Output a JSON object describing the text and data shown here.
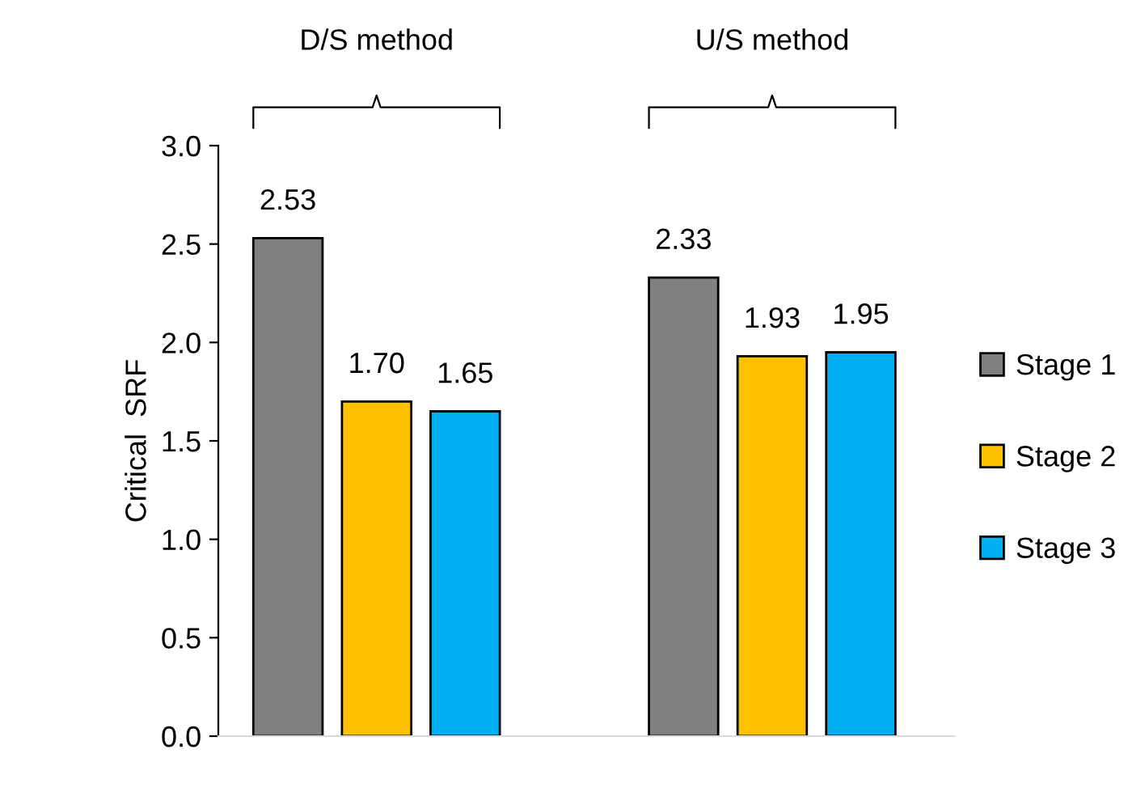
{
  "chart_data": {
    "type": "bar",
    "ylabel": "Critical  SRF",
    "categories": [
      "D/S method",
      "U/S method"
    ],
    "series": [
      {
        "name": "Stage 1",
        "color": "#808080",
        "values": [
          2.53,
          2.33
        ]
      },
      {
        "name": "Stage 2",
        "color": "#ffc000",
        "values": [
          1.7,
          1.93
        ]
      },
      {
        "name": "Stage 3",
        "color": "#00b0f0",
        "values": [
          1.65,
          1.95
        ]
      }
    ],
    "value_labels": [
      [
        "2.53",
        "2.33"
      ],
      [
        "1.70",
        "1.93"
      ],
      [
        "1.65",
        "1.95"
      ]
    ],
    "ylim": [
      0,
      3.0
    ],
    "yticks": [
      {
        "value": 0,
        "label": "0.0"
      },
      {
        "value": 0.5,
        "label": "0.5"
      },
      {
        "value": 1.0,
        "label": "1.0"
      },
      {
        "value": 1.5,
        "label": "1.5"
      },
      {
        "value": 2.0,
        "label": "2.0"
      },
      {
        "value": 2.5,
        "label": "2.5"
      },
      {
        "value": 3.0,
        "label": "3.0"
      }
    ],
    "grid": false,
    "legend": "right"
  }
}
